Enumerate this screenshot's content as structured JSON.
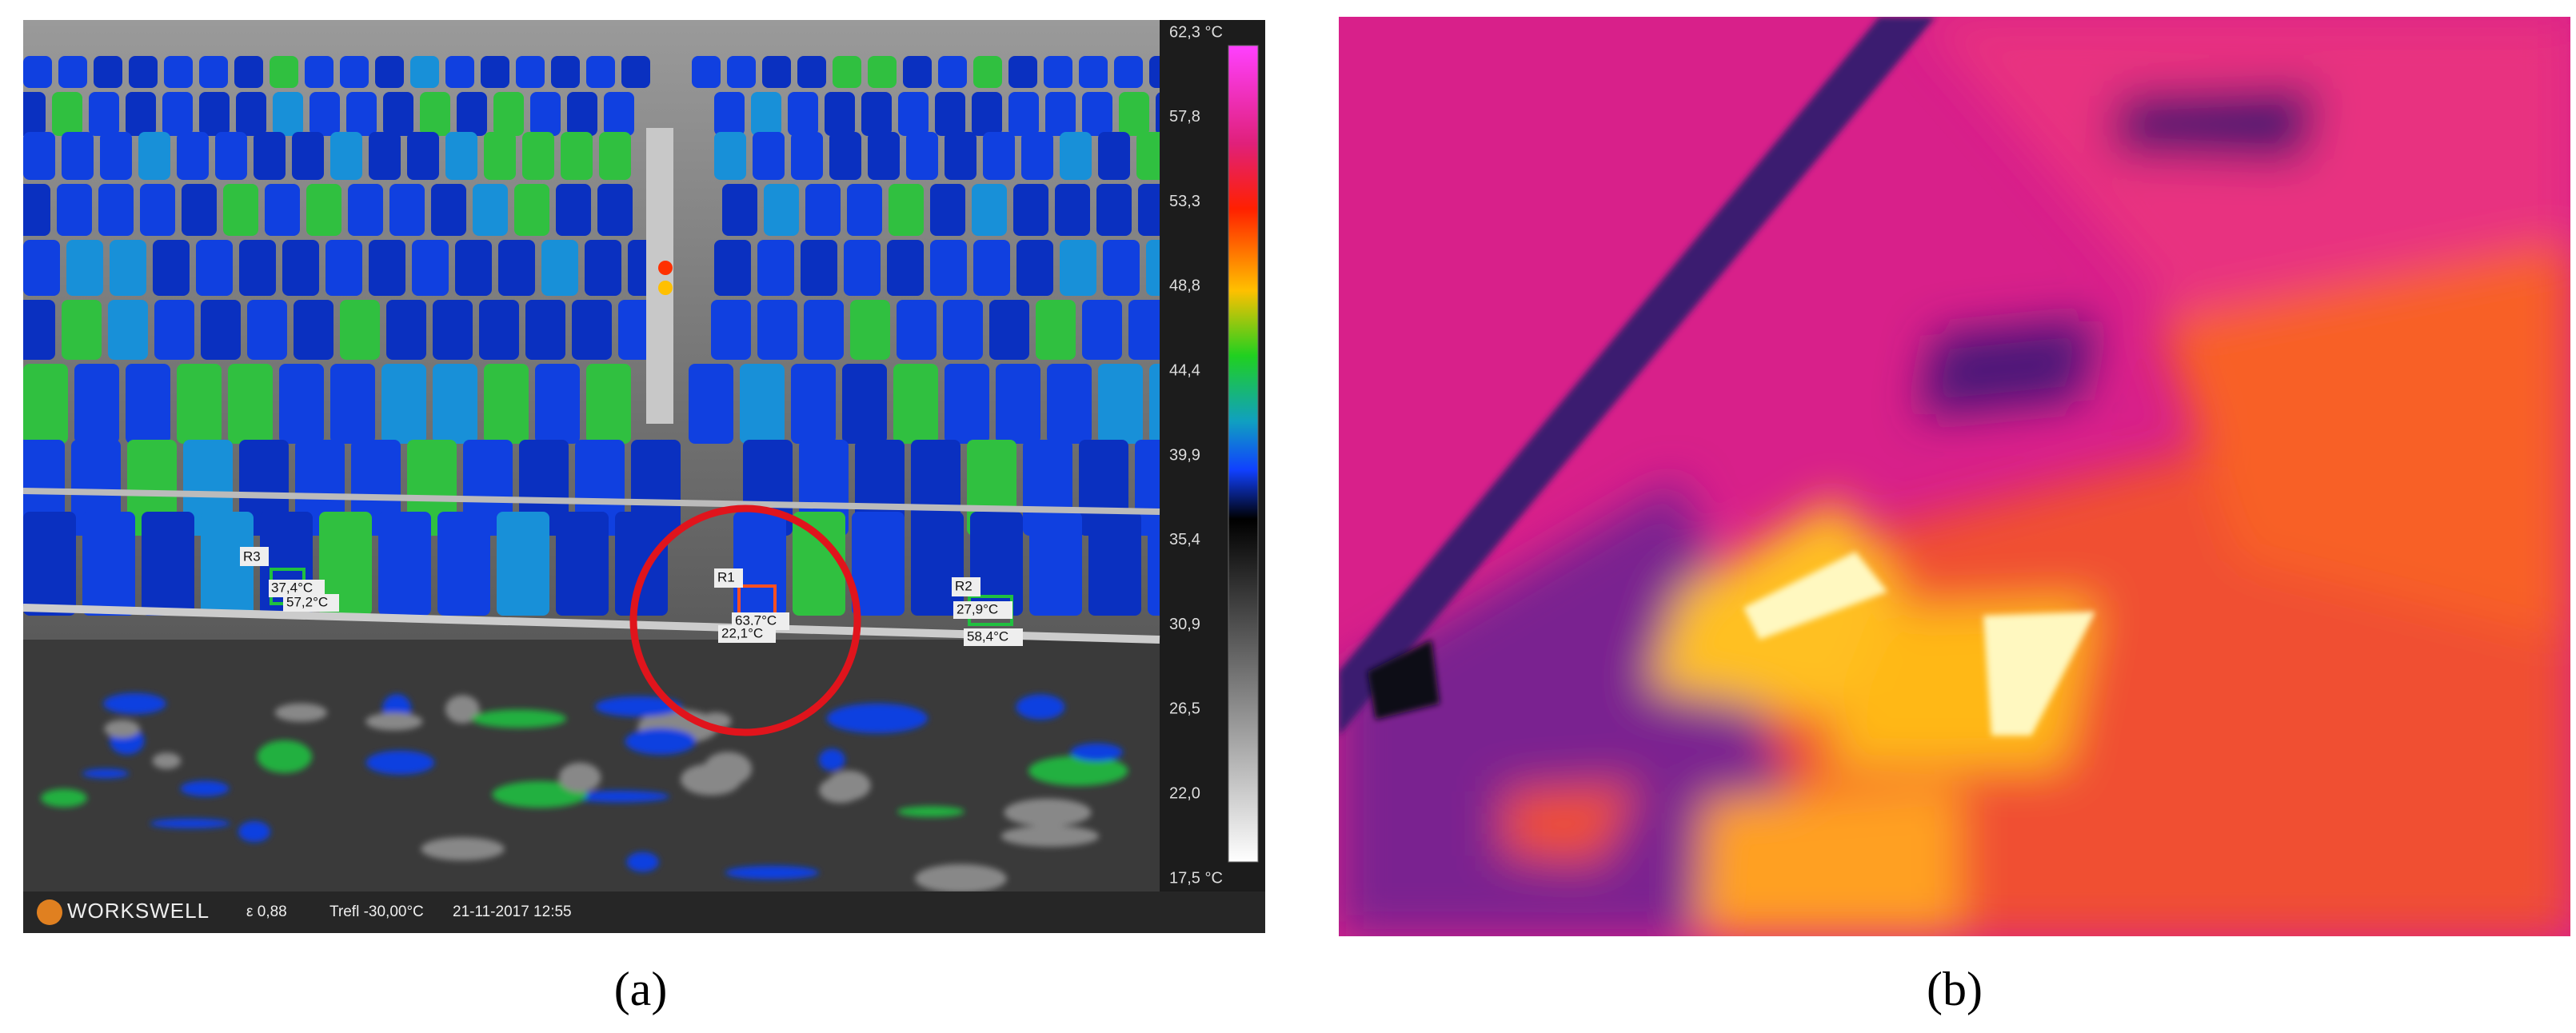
{
  "figure": {
    "panel_a": {
      "colorbar_labels": [
        "62,3 °C",
        "57,8",
        "53,3",
        "48,8",
        "44,4",
        "39,9",
        "35,4",
        "30,9",
        "26,5",
        "22,0",
        "17,5 °C"
      ],
      "footer": {
        "brand": "WORKSWELL",
        "emissivity": "ε 0,88",
        "reflected": "Trefl -30,00°C",
        "datetime": "21-11-2017 12:55"
      },
      "markers": [
        {
          "id": "R3",
          "labels": [
            "37,4°C",
            "57,2°C"
          ]
        },
        {
          "id": "R1",
          "labels": [
            "63,7°C",
            "22,1°C"
          ]
        },
        {
          "id": "R2",
          "labels": [
            "27,9°C",
            "58,4°C"
          ]
        }
      ]
    },
    "captions": [
      "(a)",
      "(b)"
    ]
  }
}
